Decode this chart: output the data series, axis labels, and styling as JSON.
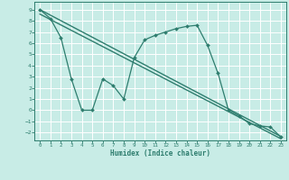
{
  "xlabel": "Humidex (Indice chaleur)",
  "xlim": [
    -0.5,
    23.5
  ],
  "ylim": [
    -2.7,
    9.7
  ],
  "xticks": [
    0,
    1,
    2,
    3,
    4,
    5,
    6,
    7,
    8,
    9,
    10,
    11,
    12,
    13,
    14,
    15,
    16,
    17,
    18,
    19,
    20,
    21,
    22,
    23
  ],
  "yticks": [
    -2,
    -1,
    0,
    1,
    2,
    3,
    4,
    5,
    6,
    7,
    8,
    9
  ],
  "bg_color": "#c8ece6",
  "line_color": "#2e7d6e",
  "grid_color": "#ffffff",
  "line1_x": [
    0,
    23
  ],
  "line1_y": [
    9.0,
    -2.35
  ],
  "line2_x": [
    0,
    23
  ],
  "line2_y": [
    8.6,
    -2.55
  ],
  "data_x": [
    0,
    1,
    2,
    3,
    4,
    5,
    6,
    7,
    8,
    9,
    10,
    11,
    12,
    13,
    14,
    15,
    16,
    17,
    18,
    19,
    20,
    21,
    22,
    23
  ],
  "data_y": [
    9.0,
    8.2,
    6.5,
    2.8,
    0.0,
    0.0,
    2.8,
    2.2,
    1.0,
    4.7,
    6.3,
    6.7,
    7.0,
    7.3,
    7.5,
    7.6,
    5.8,
    3.3,
    0.0,
    -0.5,
    -1.2,
    -1.4,
    -1.5,
    -2.4
  ]
}
